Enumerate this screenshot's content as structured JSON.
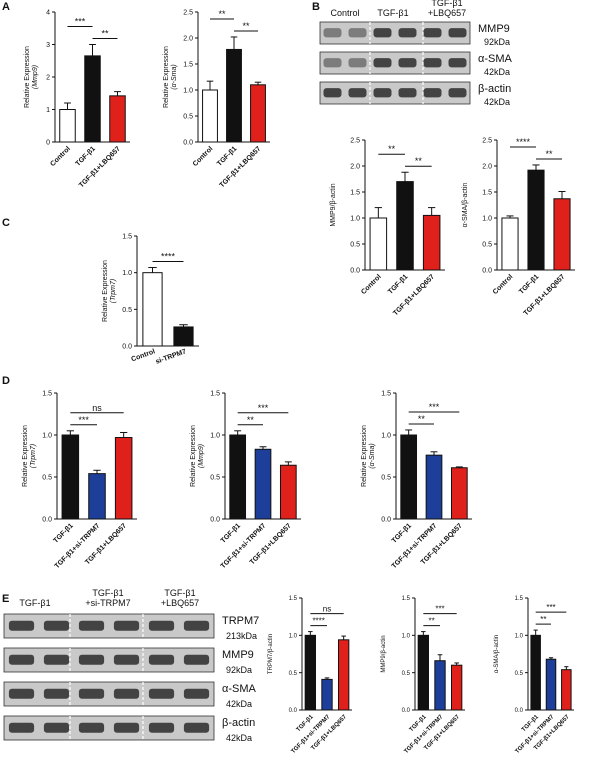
{
  "panels": [
    {
      "label": "A"
    },
    {
      "label": "B"
    },
    {
      "label": "C"
    },
    {
      "label": "D"
    },
    {
      "label": "E"
    }
  ],
  "colors": {
    "white": "#ffffff",
    "black": "#111111",
    "red": "#e0201b",
    "blue": "#1d3f99"
  },
  "blot_labels": {
    "B": {
      "lanes": [
        "Control",
        "TGF-β1",
        "TGF-β1\n+LBQ657"
      ],
      "rows": [
        {
          "name": "MMP9",
          "kda": "92kDa"
        },
        {
          "name": "α-SMA",
          "kda": "42kDa"
        },
        {
          "name": "β-actin",
          "kda": "42kDa"
        }
      ]
    },
    "E": {
      "lanes": [
        "TGF-β1",
        "TGF-β1\n+si-TRPM7",
        "TGF-β1\n+LBQ657"
      ],
      "rows": [
        {
          "name": "TRPM7",
          "kda": "213kDa"
        },
        {
          "name": "MMP9",
          "kda": "92kDa"
        },
        {
          "name": "α-SMA",
          "kda": "42kDa"
        },
        {
          "name": "β-actin",
          "kda": "42kDa"
        }
      ]
    }
  },
  "chart_data": [
    {
      "id": "A1",
      "type": "bar",
      "panel": "A",
      "categories": [
        "Control",
        "TGF-β1",
        "TGF-β1+LBQ657"
      ],
      "values": [
        1.0,
        2.65,
        1.42
      ],
      "errors": [
        0.2,
        0.35,
        0.13
      ],
      "colors": [
        "white",
        "black",
        "red"
      ],
      "ylabel": "Relative Expression",
      "ylabel2": "(Mmp9)",
      "ylim": [
        0,
        4
      ],
      "yticks": [
        0,
        1,
        2,
        3,
        4
      ],
      "sig": [
        {
          "a": 0,
          "b": 1,
          "text": "***"
        },
        {
          "a": 1,
          "b": 2,
          "text": "**"
        }
      ]
    },
    {
      "id": "A2",
      "type": "bar",
      "panel": "A",
      "categories": [
        "Control",
        "TGF-β1",
        "TGF-β1+LBQ657"
      ],
      "values": [
        1.0,
        1.78,
        1.1
      ],
      "errors": [
        0.17,
        0.24,
        0.05
      ],
      "colors": [
        "white",
        "black",
        "red"
      ],
      "ylabel": "Relative Expression",
      "ylabel2": "(α-Sma)",
      "ylim": [
        0,
        2.5
      ],
      "yticks": [
        0,
        0.5,
        1.0,
        1.5,
        2.0,
        2.5
      ],
      "sig": [
        {
          "a": 0,
          "b": 1,
          "text": "**"
        },
        {
          "a": 1,
          "b": 2,
          "text": "**"
        }
      ]
    },
    {
      "id": "B1",
      "type": "bar",
      "panel": "B",
      "categories": [
        "Control",
        "TGF-β1",
        "TGF-β1+LBQ657"
      ],
      "values": [
        1.0,
        1.7,
        1.05
      ],
      "errors": [
        0.2,
        0.18,
        0.15
      ],
      "colors": [
        "white",
        "black",
        "red"
      ],
      "ylabel": "MMP9/β-actin",
      "ylabel2": "",
      "ylim": [
        0,
        2.5
      ],
      "yticks": [
        0,
        0.5,
        1.0,
        1.5,
        2.0,
        2.5
      ],
      "sig": [
        {
          "a": 0,
          "b": 1,
          "text": "**"
        },
        {
          "a": 1,
          "b": 2,
          "text": "**"
        }
      ]
    },
    {
      "id": "B2",
      "type": "bar",
      "panel": "B",
      "categories": [
        "Control",
        "TGF-β1",
        "TGF-β1+LBQ657"
      ],
      "values": [
        1.0,
        1.92,
        1.37
      ],
      "errors": [
        0.04,
        0.1,
        0.14
      ],
      "colors": [
        "white",
        "black",
        "red"
      ],
      "ylabel": "α-SMA/β-actin",
      "ylabel2": "",
      "ylim": [
        0,
        2.5
      ],
      "yticks": [
        0,
        0.5,
        1.0,
        1.5,
        2.0,
        2.5
      ],
      "sig": [
        {
          "a": 0,
          "b": 1,
          "text": "****"
        },
        {
          "a": 1,
          "b": 2,
          "text": "**"
        }
      ]
    },
    {
      "id": "C1",
      "type": "bar",
      "panel": "C",
      "categories": [
        "Control",
        "si-TRPM7"
      ],
      "values": [
        1.0,
        0.26
      ],
      "errors": [
        0.07,
        0.03
      ],
      "colors": [
        "white",
        "black"
      ],
      "ylabel": "Relative Expression",
      "ylabel2": "(Trpm7)",
      "ylim": [
        0,
        1.5
      ],
      "yticks": [
        0,
        0.5,
        1.0,
        1.5
      ],
      "sig": [
        {
          "a": 0,
          "b": 1,
          "text": "****"
        }
      ]
    },
    {
      "id": "D1",
      "type": "bar",
      "panel": "D",
      "categories": [
        "TGF-β1",
        "TGF-β1+si-TRPM7",
        "TGF-β1+LBQ657"
      ],
      "values": [
        1.0,
        0.54,
        0.97
      ],
      "errors": [
        0.05,
        0.04,
        0.06
      ],
      "colors": [
        "black",
        "blue",
        "red"
      ],
      "ylabel": "Relative Expression",
      "ylabel2": "(Trpm7)",
      "ylim": [
        0,
        1.5
      ],
      "yticks": [
        0,
        0.5,
        1.0,
        1.5
      ],
      "sig": [
        {
          "a": 0,
          "b": 1,
          "text": "***"
        },
        {
          "a": 0,
          "b": 2,
          "text": "ns"
        }
      ]
    },
    {
      "id": "D2",
      "type": "bar",
      "panel": "D",
      "categories": [
        "TGF-β1",
        "TGF-β1+si-TRPM7",
        "TGF-β1+LBQ657"
      ],
      "values": [
        1.0,
        0.83,
        0.64
      ],
      "errors": [
        0.05,
        0.03,
        0.04
      ],
      "colors": [
        "black",
        "blue",
        "red"
      ],
      "ylabel": "Relative Expression",
      "ylabel2": "(Mmp9)",
      "ylim": [
        0,
        1.5
      ],
      "yticks": [
        0,
        0.5,
        1.0,
        1.5
      ],
      "sig": [
        {
          "a": 0,
          "b": 1,
          "text": "**"
        },
        {
          "a": 0,
          "b": 2,
          "text": "***"
        }
      ]
    },
    {
      "id": "D3",
      "type": "bar",
      "panel": "D",
      "categories": [
        "TGF-β1",
        "TGF-β1+si-TRPM7",
        "TGF-β1+LBQ657"
      ],
      "values": [
        1.0,
        0.76,
        0.61
      ],
      "errors": [
        0.06,
        0.04,
        0.01
      ],
      "colors": [
        "black",
        "blue",
        "red"
      ],
      "ylabel": "Relative Expression",
      "ylabel2": "(α-Sma)",
      "ylim": [
        0,
        1.5
      ],
      "yticks": [
        0,
        0.5,
        1.0,
        1.5
      ],
      "sig": [
        {
          "a": 0,
          "b": 1,
          "text": "**"
        },
        {
          "a": 0,
          "b": 2,
          "text": "***"
        }
      ]
    },
    {
      "id": "E1",
      "type": "bar",
      "panel": "E",
      "categories": [
        "TGF-β1",
        "TGF-β1+si-TRPM7",
        "TGF-β1+LBQ657"
      ],
      "values": [
        1.0,
        0.41,
        0.94
      ],
      "errors": [
        0.05,
        0.02,
        0.05
      ],
      "colors": [
        "black",
        "blue",
        "red"
      ],
      "ylabel": "TRPM7/β-actin",
      "ylabel2": "",
      "ylim": [
        0,
        1.5
      ],
      "yticks": [
        0,
        0.5,
        1.0,
        1.5
      ],
      "sig": [
        {
          "a": 0,
          "b": 1,
          "text": "****"
        },
        {
          "a": 0,
          "b": 2,
          "text": "ns"
        }
      ]
    },
    {
      "id": "E2",
      "type": "bar",
      "panel": "E",
      "categories": [
        "TGF-β1",
        "TGF-β1+si-TRPM7",
        "TGF-β1+LBQ657"
      ],
      "values": [
        1.0,
        0.66,
        0.6
      ],
      "errors": [
        0.05,
        0.08,
        0.03
      ],
      "colors": [
        "black",
        "blue",
        "red"
      ],
      "ylabel": "MMP9/β-actin",
      "ylabel2": "",
      "ylim": [
        0,
        1.5
      ],
      "yticks": [
        0,
        0.5,
        1.0,
        1.5
      ],
      "sig": [
        {
          "a": 0,
          "b": 1,
          "text": "**"
        },
        {
          "a": 0,
          "b": 2,
          "text": "***"
        }
      ]
    },
    {
      "id": "E3",
      "type": "bar",
      "panel": "E",
      "categories": [
        "TGF-β1",
        "TGF-β1+si-TRPM7",
        "TGF-β1+LBQ657"
      ],
      "values": [
        1.0,
        0.68,
        0.54
      ],
      "errors": [
        0.07,
        0.02,
        0.04
      ],
      "colors": [
        "black",
        "blue",
        "red"
      ],
      "ylabel": "α-SMA/β-actin",
      "ylabel2": "",
      "ylim": [
        0,
        1.5
      ],
      "yticks": [
        0,
        0.5,
        1.0,
        1.5
      ],
      "sig": [
        {
          "a": 0,
          "b": 1,
          "text": "**"
        },
        {
          "a": 0,
          "b": 2,
          "text": "***"
        }
      ]
    }
  ]
}
